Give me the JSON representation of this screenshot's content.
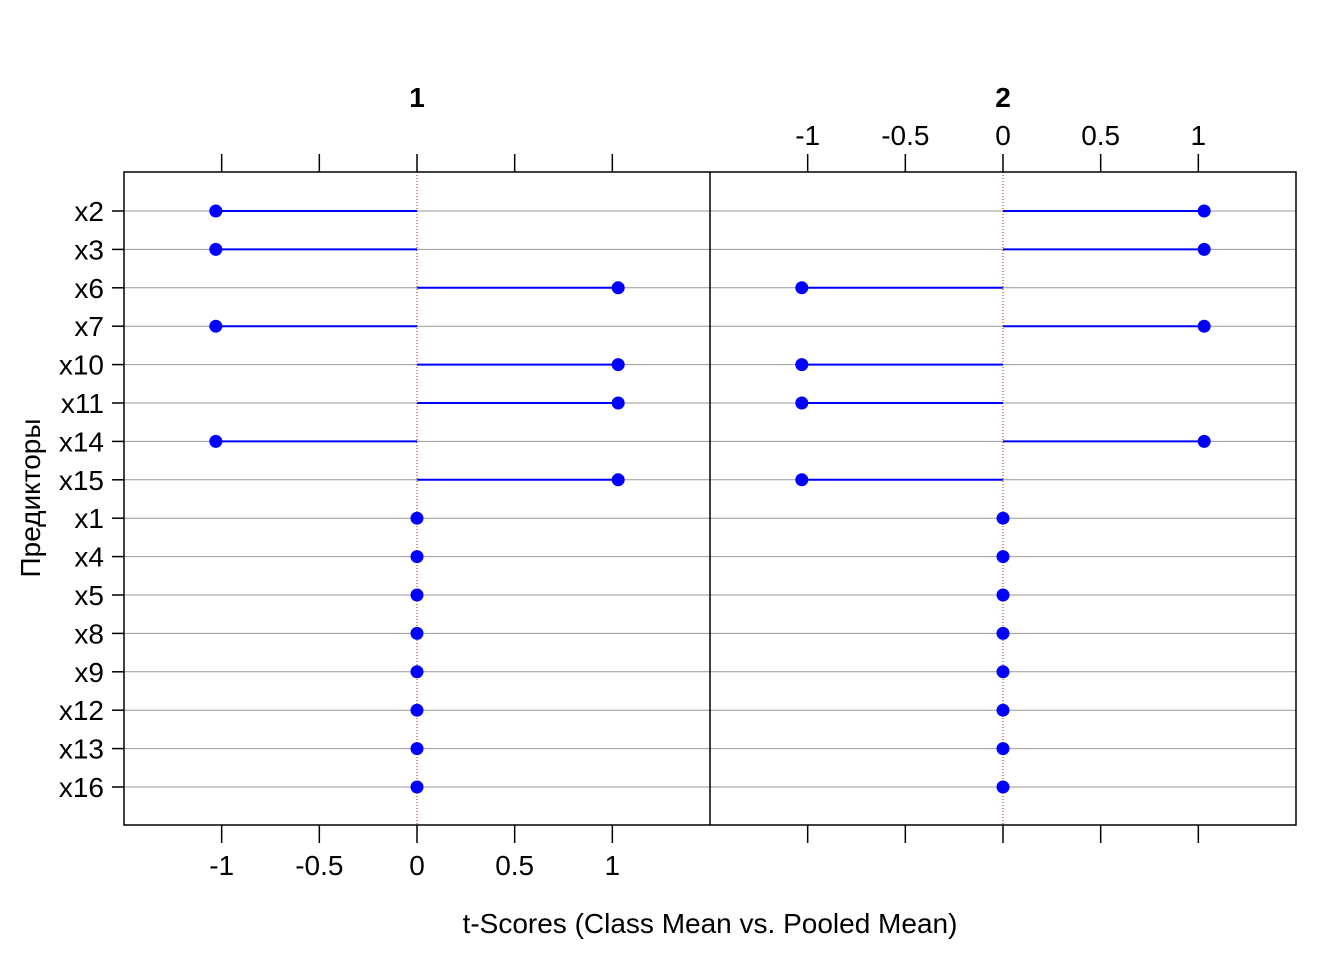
{
  "chart_data": {
    "type": "dot",
    "xlabel": "t-Scores (Class Mean vs. Pooled Mean)",
    "ylabel": "Предикторы",
    "xlim": [
      -1.5,
      1.5
    ],
    "xticks": [
      -1,
      -0.5,
      0,
      0.5,
      1
    ],
    "xtick_labels": [
      "-1",
      "-0.5",
      "0",
      "0.5",
      "1"
    ],
    "reference_line": 0,
    "grid": true,
    "colors": {
      "points": "#0000ff",
      "segments": "#0000ff",
      "reference": "#b22222",
      "grid": "#999999"
    },
    "categories": [
      "x2",
      "x3",
      "x6",
      "x7",
      "x10",
      "x11",
      "x14",
      "x15",
      "x1",
      "x4",
      "x5",
      "x8",
      "x9",
      "x12",
      "x13",
      "x16"
    ],
    "panels": [
      {
        "name": "1",
        "values": [
          -1.03,
          -1.03,
          1.03,
          -1.03,
          1.03,
          1.03,
          -1.03,
          1.03,
          0,
          0,
          0,
          0,
          0,
          0,
          0,
          0
        ]
      },
      {
        "name": "2",
        "values": [
          1.03,
          1.03,
          -1.03,
          1.03,
          -1.03,
          -1.03,
          1.03,
          -1.03,
          0,
          0,
          0,
          0,
          0,
          0,
          0,
          0
        ]
      }
    ]
  }
}
